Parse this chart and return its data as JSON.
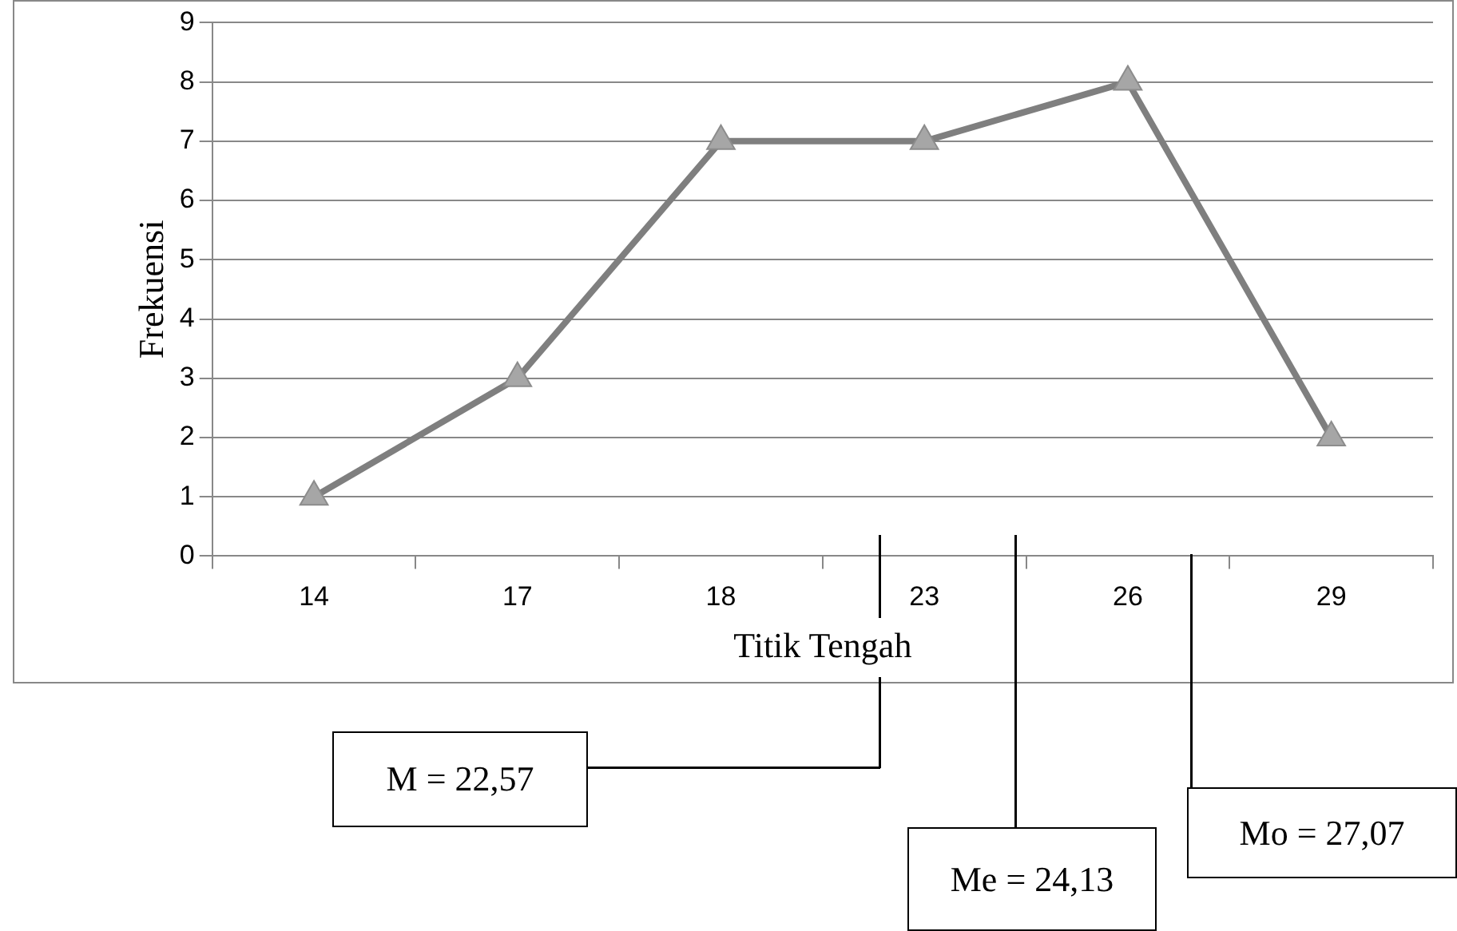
{
  "chart_data": {
    "type": "line",
    "xlabel": "Titik Tengah",
    "ylabel": "Frekuensi",
    "categories": [
      "14",
      "17",
      "18",
      "23",
      "26",
      "29"
    ],
    "series": [
      {
        "color": "#7f7f7f",
        "values": [
          1,
          3,
          7,
          7,
          8,
          2
        ]
      }
    ],
    "ylim": [
      0,
      9
    ],
    "yticks": [
      0,
      1,
      2,
      3,
      4,
      5,
      6,
      7,
      8,
      9
    ],
    "grid": "y",
    "legend": false,
    "marker": "triangle",
    "line_style": "solid",
    "annotations": [
      "M = 22,57",
      "Me = 24,13",
      "Mo = 27,07"
    ]
  }
}
